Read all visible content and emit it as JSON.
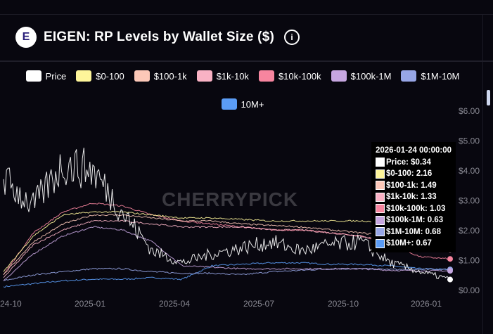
{
  "header": {
    "title": "EIGEN: RP Levels by Wallet Size ($)",
    "logo_text": "E",
    "info_icon": "i"
  },
  "watermark": "CHERRYPICK",
  "tooltip": {
    "date": "2026-01-24 00:00:00",
    "rows": [
      "Price: $0.34",
      "$0-100: 2.16",
      "$100-1k: 1.49",
      "$1k-10k: 1.33",
      "$10k-100k: 1.03",
      "$100k-1M: 0.63",
      "$1M-10M: 0.68",
      "$10M+: 0.67"
    ]
  },
  "chart_data": {
    "type": "line",
    "title": "EIGEN: RP Levels by Wallet Size ($)",
    "x": [
      "2024-10",
      "2024-11",
      "2024-12",
      "2025-01",
      "2025-02",
      "2025-03",
      "2025-04",
      "2025-05",
      "2025-06",
      "2025-07",
      "2025-08",
      "2025-09",
      "2025-10",
      "2025-11",
      "2025-12",
      "2026-01"
    ],
    "x_ticks": [
      "24-10",
      "2025-01",
      "2025-04",
      "2025-07",
      "2025-10",
      "2026-01"
    ],
    "y_ticks": [
      "$0.00",
      "$1.00",
      "$2.00",
      "$3.00",
      "$4.00",
      "$5.00",
      "$6.00"
    ],
    "ylim": [
      0,
      6
    ],
    "y_axis_position": "right",
    "legend_position": "top",
    "series": [
      {
        "name": "Price",
        "color": "#ffffff",
        "values": [
          3.7,
          2.8,
          4.2,
          4.0,
          2.6,
          1.3,
          0.9,
          1.2,
          1.4,
          1.6,
          1.3,
          1.5,
          1.6,
          0.9,
          0.6,
          0.34
        ]
      },
      {
        "name": "$0-100",
        "color": "#fef59a",
        "values": [
          0.6,
          1.8,
          2.5,
          2.6,
          2.6,
          2.5,
          2.4,
          2.4,
          2.35,
          2.3,
          2.3,
          2.3,
          2.3,
          2.25,
          2.2,
          2.16
        ]
      },
      {
        "name": "$100-1k",
        "color": "#fcc8b8",
        "values": [
          0.5,
          1.6,
          2.2,
          2.5,
          2.5,
          2.4,
          2.3,
          2.3,
          2.2,
          2.15,
          2.1,
          2.0,
          1.9,
          1.8,
          1.6,
          1.49
        ]
      },
      {
        "name": "$1k-10k",
        "color": "#f9b2c4",
        "values": [
          0.4,
          1.5,
          2.0,
          2.3,
          2.3,
          2.2,
          2.1,
          2.1,
          2.1,
          2.0,
          2.0,
          1.9,
          1.8,
          1.6,
          1.45,
          1.33
        ]
      },
      {
        "name": "$10k-100k",
        "color": "#f7859f",
        "values": [
          0.5,
          1.9,
          2.6,
          2.9,
          2.8,
          2.5,
          2.3,
          2.2,
          2.1,
          2.0,
          2.0,
          1.9,
          1.8,
          1.5,
          1.1,
          1.03
        ]
      },
      {
        "name": "$100k-1M",
        "color": "#c6a6e0",
        "values": [
          0.3,
          1.2,
          1.8,
          2.1,
          2.0,
          1.6,
          0.8,
          0.75,
          0.7,
          0.7,
          0.7,
          0.7,
          0.7,
          0.65,
          0.63,
          0.63
        ]
      },
      {
        "name": "$1M-10M",
        "color": "#97a6e6",
        "values": [
          0.3,
          0.5,
          0.6,
          0.7,
          0.7,
          0.6,
          0.55,
          0.55,
          0.5,
          0.6,
          0.65,
          0.7,
          0.7,
          0.68,
          0.68,
          0.68
        ]
      },
      {
        "name": "10M+",
        "color": "#5b9cf5",
        "values": [
          0.1,
          0.2,
          0.3,
          0.35,
          0.35,
          0.4,
          0.35,
          0.8,
          0.85,
          0.9,
          0.9,
          0.85,
          0.85,
          0.8,
          0.7,
          0.67
        ]
      }
    ]
  }
}
